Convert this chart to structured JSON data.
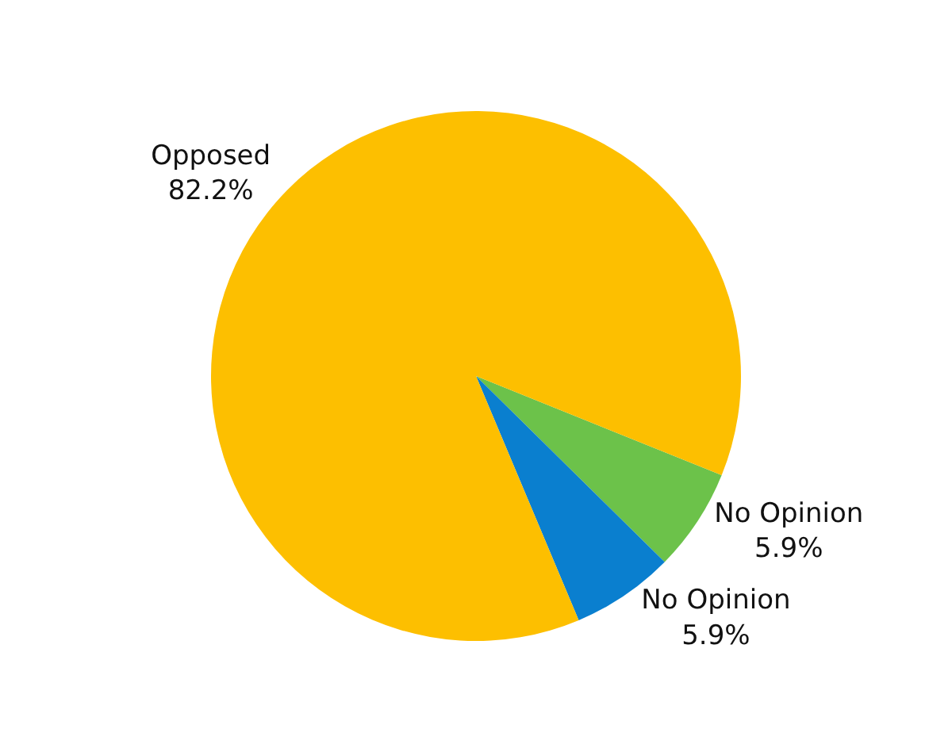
{
  "chart_data": {
    "type": "pie",
    "categories": [
      "No Opinion",
      "No Opinion",
      "Opposed"
    ],
    "values": [
      5.9,
      5.9,
      82.2
    ],
    "value_labels": [
      "5.9%",
      "5.9%",
      "82.2%"
    ],
    "colors": [
      "#6cc24a",
      "#0a7fcf",
      "#fdbf00"
    ],
    "legend": false
  }
}
